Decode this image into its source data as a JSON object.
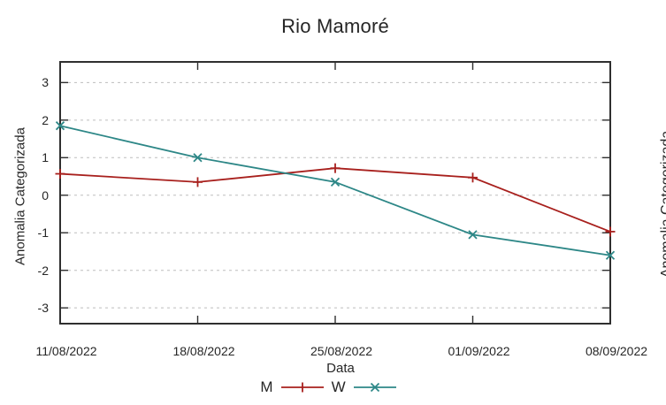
{
  "chart_data": {
    "type": "line",
    "title": "Rio Mamoré",
    "xlabel": "Data",
    "ylabel": "Anomalia Categorizada",
    "x_categories": [
      "11/08/2022",
      "18/08/2022",
      "25/08/2022",
      "01/09/2022",
      "08/09/2022"
    ],
    "y_ticks": [
      3,
      2,
      1,
      0,
      -1,
      -2,
      -3
    ],
    "ylim": [
      -3.42,
      3.55
    ],
    "grid": "horizontal dashed gray lines at integer ticks",
    "legend_position": "centered below x-axis label",
    "series": [
      {
        "name": "M",
        "color": "#a8201d",
        "marker": "plus",
        "values": [
          0.57,
          0.35,
          0.72,
          0.47,
          -0.97
        ]
      },
      {
        "name": "W",
        "color": "#2d8787",
        "marker": "cross",
        "values": [
          1.85,
          1.0,
          0.35,
          -1.05,
          -1.6
        ]
      }
    ],
    "colors": {
      "grid": "#bdbdbd",
      "border": "#2f2f2f",
      "text": "#262626",
      "background": "#ffffff"
    }
  },
  "adjacent_chart_fragment": {
    "ylabel": "Anomalia Categorizada"
  }
}
